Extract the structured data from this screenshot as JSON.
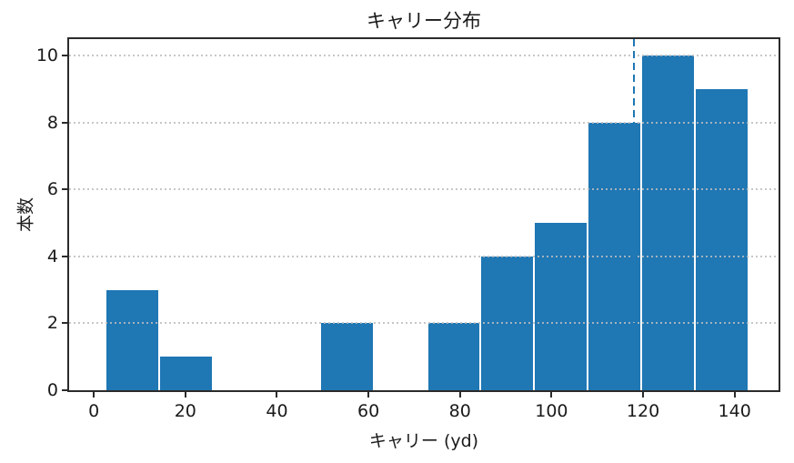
{
  "chart_data": {
    "type": "bar",
    "chart_kind": "histogram",
    "title": "キャリー分布",
    "xlabel": "キャリー (yd)",
    "ylabel": "本数",
    "bin_edges": [
      2.6,
      14.3,
      26.0,
      37.7,
      49.4,
      61.1,
      72.8,
      84.5,
      96.2,
      107.9,
      119.6,
      131.3,
      143.0
    ],
    "counts": [
      3,
      1,
      0,
      0,
      2,
      0,
      2,
      4,
      5,
      8,
      10,
      9
    ],
    "xticks": [
      0,
      20,
      40,
      60,
      80,
      100,
      120,
      140
    ],
    "yticks": [
      0,
      2,
      4,
      6,
      8,
      10
    ],
    "xlim": [
      -5.4,
      149.6
    ],
    "ylim": [
      0,
      10.5
    ],
    "grid": "horizontal-dotted",
    "legend": "none",
    "vline": {
      "x": 118,
      "style": "dashed",
      "color": "#1f77b4"
    },
    "colors": {
      "bar": "#1f77b4",
      "bar_edge": "#ffffff",
      "grid": "#bdbdbd",
      "spine": "#2b2b2b",
      "text": "#1a1a1a"
    }
  }
}
